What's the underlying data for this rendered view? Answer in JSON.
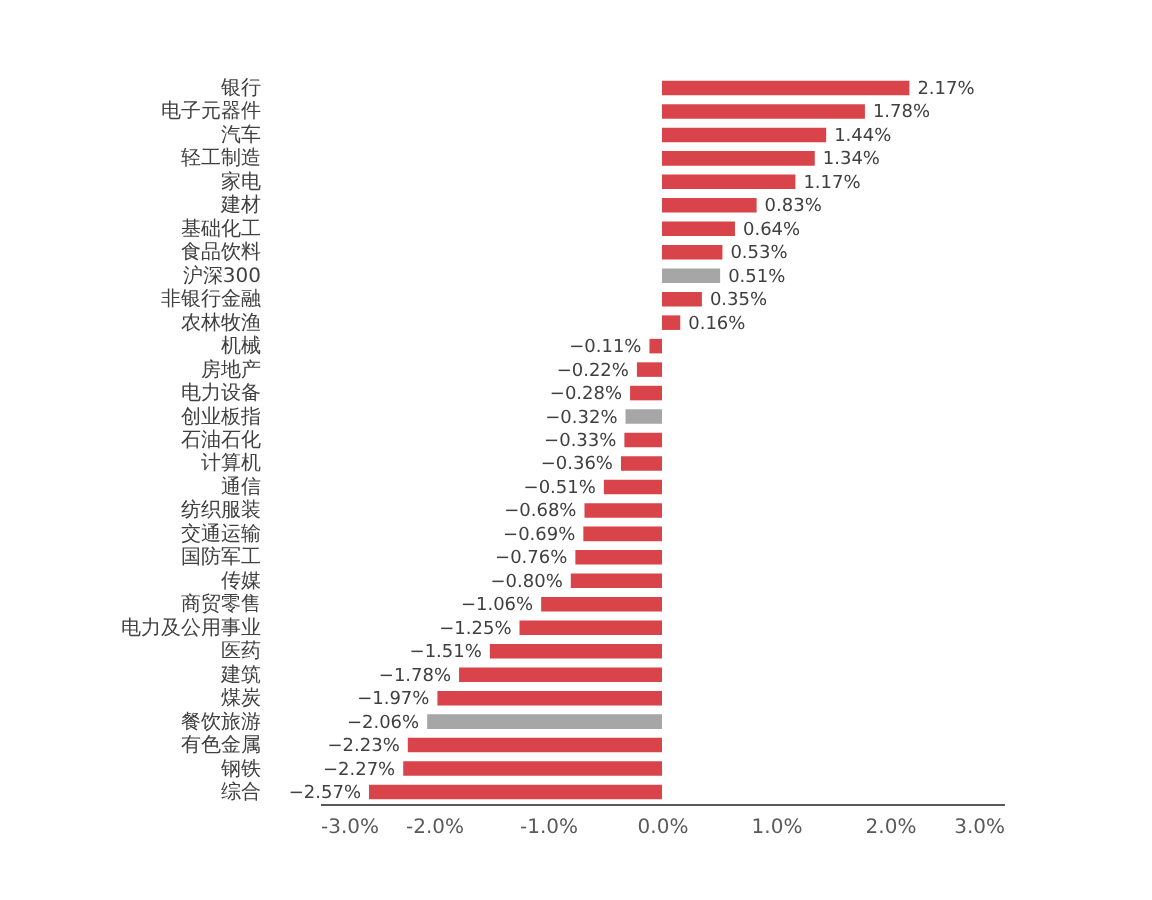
{
  "chart_data": {
    "type": "bar",
    "orientation": "horizontal",
    "categories": [
      "银行",
      "电子元器件",
      "汽车",
      "轻工制造",
      "家电",
      "建材",
      "基础化工",
      "食品饮料",
      "沪深300",
      "非银行金融",
      "农林牧渔",
      "机械",
      "房地产",
      "电力设备",
      "创业板指",
      "石油石化",
      "计算机",
      "通信",
      "纺织服装",
      "交通运输",
      "国防军工",
      "传媒",
      "商贸零售",
      "电力及公用事业",
      "医药",
      "建筑",
      "煤炭",
      "餐饮旅游",
      "有色金属",
      "钢铁",
      "综合"
    ],
    "values": [
      2.17,
      1.78,
      1.44,
      1.34,
      1.17,
      0.83,
      0.64,
      0.53,
      0.51,
      0.35,
      0.16,
      -0.11,
      -0.22,
      -0.28,
      -0.32,
      -0.33,
      -0.36,
      -0.51,
      -0.68,
      -0.69,
      -0.76,
      -0.8,
      -1.06,
      -1.25,
      -1.51,
      -1.78,
      -1.97,
      -2.06,
      -2.23,
      -2.27,
      -2.57
    ],
    "value_labels": [
      "2.17%",
      "1.78%",
      "1.44%",
      "1.34%",
      "1.17%",
      "0.83%",
      "0.64%",
      "0.53%",
      "0.51%",
      "0.35%",
      "0.16%",
      "−0.11%",
      "−0.22%",
      "−0.28%",
      "−0.32%",
      "−0.33%",
      "−0.36%",
      "−0.51%",
      "−0.68%",
      "−0.69%",
      "−0.76%",
      "−0.80%",
      "−1.06%",
      "−1.25%",
      "−1.51%",
      "−1.78%",
      "−1.97%",
      "−2.06%",
      "−2.23%",
      "−2.27%",
      "−2.57%"
    ],
    "colors": [
      "#d9434a",
      "#d9434a",
      "#d9434a",
      "#d9434a",
      "#d9434a",
      "#d9434a",
      "#d9434a",
      "#d9434a",
      "#a6a6a6",
      "#d9434a",
      "#d9434a",
      "#d9434a",
      "#d9434a",
      "#d9434a",
      "#a6a6a6",
      "#d9434a",
      "#d9434a",
      "#d9434a",
      "#d9434a",
      "#d9434a",
      "#d9434a",
      "#d9434a",
      "#d9434a",
      "#d9434a",
      "#d9434a",
      "#d9434a",
      "#d9434a",
      "#a6a6a6",
      "#d9434a",
      "#d9434a",
      "#d9434a"
    ],
    "xlim": [
      -3,
      3
    ],
    "xticks": [
      {
        "value": -3,
        "label": "-3.0%"
      },
      {
        "value": -2,
        "label": "-2.0%"
      },
      {
        "value": -1,
        "label": "-1.0%"
      },
      {
        "value": 0,
        "label": "0.0%"
      },
      {
        "value": 1,
        "label": "1.0%"
      },
      {
        "value": 2,
        "label": "2.0%"
      },
      {
        "value": 3,
        "label": "3.0%"
      }
    ],
    "grid": false
  }
}
